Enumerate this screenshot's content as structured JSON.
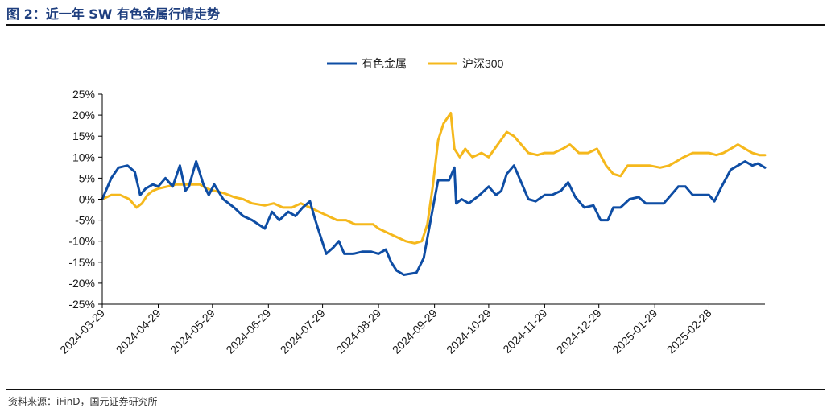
{
  "header": {
    "title": "图 2：近一年 SW 有色金属行情走势"
  },
  "footer": {
    "source": "资料来源：iFinD，国元证券研究所"
  },
  "colors": {
    "series_1": "#0e4da4",
    "series_2": "#f5b81c",
    "axis": "#000000"
  },
  "chart_data": {
    "type": "line",
    "title": "",
    "xlabel": "",
    "ylabel": "",
    "ylim": [
      -25,
      25
    ],
    "y_ticks": [
      25,
      20,
      15,
      10,
      5,
      0,
      -5,
      -10,
      -15,
      -20,
      -25
    ],
    "y_tick_labels": [
      "25%",
      "20%",
      "15%",
      "10%",
      "5%",
      "0%",
      "-5%",
      "-10%",
      "-15%",
      "-20%",
      "-25%"
    ],
    "x_range": [
      "2024-03-29",
      "2025-03-31"
    ],
    "x_ticks": [
      "2024-03-29",
      "2024-04-29",
      "2024-05-29",
      "2024-06-29",
      "2024-07-29",
      "2024-08-29",
      "2024-09-29",
      "2024-10-29",
      "2024-11-29",
      "2024-12-29",
      "2025-01-29",
      "2025-02-28"
    ],
    "grid": false,
    "legend_position": "top-center",
    "series": [
      {
        "name": "有色金属",
        "color": "#0e4da4",
        "points": [
          [
            "2024-03-29",
            0
          ],
          [
            "2024-04-03",
            5
          ],
          [
            "2024-04-07",
            7.5
          ],
          [
            "2024-04-12",
            8
          ],
          [
            "2024-04-16",
            6.5
          ],
          [
            "2024-04-19",
            1
          ],
          [
            "2024-04-22",
            2.5
          ],
          [
            "2024-04-26",
            3.5
          ],
          [
            "2024-04-29",
            3
          ],
          [
            "2024-05-03",
            5
          ],
          [
            "2024-05-07",
            3
          ],
          [
            "2024-05-11",
            8
          ],
          [
            "2024-05-14",
            2
          ],
          [
            "2024-05-16",
            3
          ],
          [
            "2024-05-20",
            9
          ],
          [
            "2024-05-24",
            3.5
          ],
          [
            "2024-05-27",
            1
          ],
          [
            "2024-05-30",
            3.5
          ],
          [
            "2024-06-04",
            0
          ],
          [
            "2024-06-10",
            -2
          ],
          [
            "2024-06-15",
            -4
          ],
          [
            "2024-06-20",
            -5
          ],
          [
            "2024-06-27",
            -7
          ],
          [
            "2024-07-01",
            -3
          ],
          [
            "2024-07-05",
            -5
          ],
          [
            "2024-07-10",
            -3
          ],
          [
            "2024-07-14",
            -4
          ],
          [
            "2024-07-18",
            -2
          ],
          [
            "2024-07-22",
            -0.5
          ],
          [
            "2024-07-25",
            -5
          ],
          [
            "2024-07-28",
            -9
          ],
          [
            "2024-07-31",
            -13
          ],
          [
            "2024-08-04",
            -11.5
          ],
          [
            "2024-08-07",
            -10
          ],
          [
            "2024-08-10",
            -13
          ],
          [
            "2024-08-15",
            -13
          ],
          [
            "2024-08-20",
            -12.5
          ],
          [
            "2024-08-25",
            -12.5
          ],
          [
            "2024-08-29",
            -13
          ],
          [
            "2024-09-02",
            -12
          ],
          [
            "2024-09-05",
            -15
          ],
          [
            "2024-09-08",
            -17
          ],
          [
            "2024-09-12",
            -18
          ],
          [
            "2024-09-19",
            -17.5
          ],
          [
            "2024-09-23",
            -14
          ],
          [
            "2024-09-26",
            -7
          ],
          [
            "2024-09-29",
            0
          ],
          [
            "2024-10-01",
            4.5
          ],
          [
            "2024-10-07",
            4.5
          ],
          [
            "2024-10-10",
            7.5
          ],
          [
            "2024-10-11",
            -1
          ],
          [
            "2024-10-14",
            0
          ],
          [
            "2024-10-18",
            -1
          ],
          [
            "2024-10-24",
            1
          ],
          [
            "2024-10-29",
            3
          ],
          [
            "2024-11-02",
            1
          ],
          [
            "2024-11-05",
            2
          ],
          [
            "2024-11-08",
            6
          ],
          [
            "2024-11-12",
            8
          ],
          [
            "2024-11-16",
            4
          ],
          [
            "2024-11-20",
            0
          ],
          [
            "2024-11-24",
            -0.5
          ],
          [
            "2024-11-29",
            1
          ],
          [
            "2024-12-03",
            1
          ],
          [
            "2024-12-08",
            2
          ],
          [
            "2024-12-12",
            4
          ],
          [
            "2024-12-16",
            0.5
          ],
          [
            "2024-12-21",
            -2
          ],
          [
            "2024-12-26",
            -1.5
          ],
          [
            "2024-12-30",
            -5
          ],
          [
            "2025-01-03",
            -5
          ],
          [
            "2025-01-06",
            -2
          ],
          [
            "2025-01-10",
            -2
          ],
          [
            "2025-01-15",
            0
          ],
          [
            "2025-01-20",
            0.5
          ],
          [
            "2025-01-24",
            -1
          ],
          [
            "2025-01-28",
            -1
          ],
          [
            "2025-02-03",
            -1
          ],
          [
            "2025-02-07",
            1
          ],
          [
            "2025-02-11",
            3
          ],
          [
            "2025-02-15",
            3
          ],
          [
            "2025-02-19",
            1
          ],
          [
            "2025-02-24",
            1
          ],
          [
            "2025-02-28",
            1
          ],
          [
            "2025-03-03",
            -0.5
          ],
          [
            "2025-03-07",
            3
          ],
          [
            "2025-03-12",
            7
          ],
          [
            "2025-03-16",
            8
          ],
          [
            "2025-03-20",
            9
          ],
          [
            "2025-03-24",
            8
          ],
          [
            "2025-03-27",
            8.5
          ],
          [
            "2025-03-31",
            7.5
          ]
        ]
      },
      {
        "name": "沪深300",
        "color": "#f5b81c",
        "points": [
          [
            "2024-03-29",
            0
          ],
          [
            "2024-04-03",
            1
          ],
          [
            "2024-04-08",
            1
          ],
          [
            "2024-04-13",
            0
          ],
          [
            "2024-04-17",
            -2
          ],
          [
            "2024-04-20",
            -1
          ],
          [
            "2024-04-23",
            1
          ],
          [
            "2024-04-26",
            2
          ],
          [
            "2024-04-29",
            2.5
          ],
          [
            "2024-05-04",
            3
          ],
          [
            "2024-05-09",
            3.5
          ],
          [
            "2024-05-14",
            3.5
          ],
          [
            "2024-05-18",
            3.5
          ],
          [
            "2024-05-22",
            3.5
          ],
          [
            "2024-05-26",
            2.5
          ],
          [
            "2024-05-30",
            2
          ],
          [
            "2024-06-04",
            1.5
          ],
          [
            "2024-06-10",
            0.5
          ],
          [
            "2024-06-15",
            0
          ],
          [
            "2024-06-20",
            -1
          ],
          [
            "2024-06-27",
            -1.5
          ],
          [
            "2024-07-02",
            -1
          ],
          [
            "2024-07-07",
            -2
          ],
          [
            "2024-07-12",
            -2
          ],
          [
            "2024-07-17",
            -1
          ],
          [
            "2024-07-22",
            -2
          ],
          [
            "2024-07-27",
            -3
          ],
          [
            "2024-08-01",
            -4
          ],
          [
            "2024-08-06",
            -5
          ],
          [
            "2024-08-11",
            -5
          ],
          [
            "2024-08-16",
            -6
          ],
          [
            "2024-08-21",
            -6
          ],
          [
            "2024-08-26",
            -6
          ],
          [
            "2024-08-29",
            -7
          ],
          [
            "2024-09-03",
            -8
          ],
          [
            "2024-09-08",
            -9
          ],
          [
            "2024-09-13",
            -10
          ],
          [
            "2024-09-18",
            -10.5
          ],
          [
            "2024-09-22",
            -10
          ],
          [
            "2024-09-25",
            -6
          ],
          [
            "2024-09-28",
            3
          ],
          [
            "2024-10-01",
            14
          ],
          [
            "2024-10-04",
            18
          ],
          [
            "2024-10-08",
            20.5
          ],
          [
            "2024-10-10",
            12
          ],
          [
            "2024-10-13",
            10
          ],
          [
            "2024-10-16",
            12
          ],
          [
            "2024-10-20",
            10
          ],
          [
            "2024-10-25",
            11
          ],
          [
            "2024-10-29",
            10
          ],
          [
            "2024-11-03",
            13
          ],
          [
            "2024-11-08",
            16
          ],
          [
            "2024-11-12",
            15
          ],
          [
            "2024-11-16",
            13
          ],
          [
            "2024-11-20",
            11
          ],
          [
            "2024-11-25",
            10.5
          ],
          [
            "2024-11-29",
            11
          ],
          [
            "2024-12-04",
            11
          ],
          [
            "2024-12-09",
            12
          ],
          [
            "2024-12-13",
            13
          ],
          [
            "2024-12-18",
            11
          ],
          [
            "2024-12-23",
            11
          ],
          [
            "2024-12-28",
            12
          ],
          [
            "2025-01-02",
            8
          ],
          [
            "2025-01-06",
            6
          ],
          [
            "2025-01-10",
            5.5
          ],
          [
            "2025-01-14",
            8
          ],
          [
            "2025-01-20",
            8
          ],
          [
            "2025-01-26",
            8
          ],
          [
            "2025-02-01",
            7.5
          ],
          [
            "2025-02-06",
            8
          ],
          [
            "2025-02-10",
            9
          ],
          [
            "2025-02-14",
            10
          ],
          [
            "2025-02-19",
            11
          ],
          [
            "2025-02-24",
            11
          ],
          [
            "2025-02-28",
            11
          ],
          [
            "2025-03-04",
            10.5
          ],
          [
            "2025-03-08",
            11
          ],
          [
            "2025-03-12",
            12
          ],
          [
            "2025-03-16",
            13
          ],
          [
            "2025-03-20",
            12
          ],
          [
            "2025-03-24",
            11
          ],
          [
            "2025-03-28",
            10.5
          ],
          [
            "2025-03-31",
            10.5
          ]
        ]
      }
    ]
  }
}
